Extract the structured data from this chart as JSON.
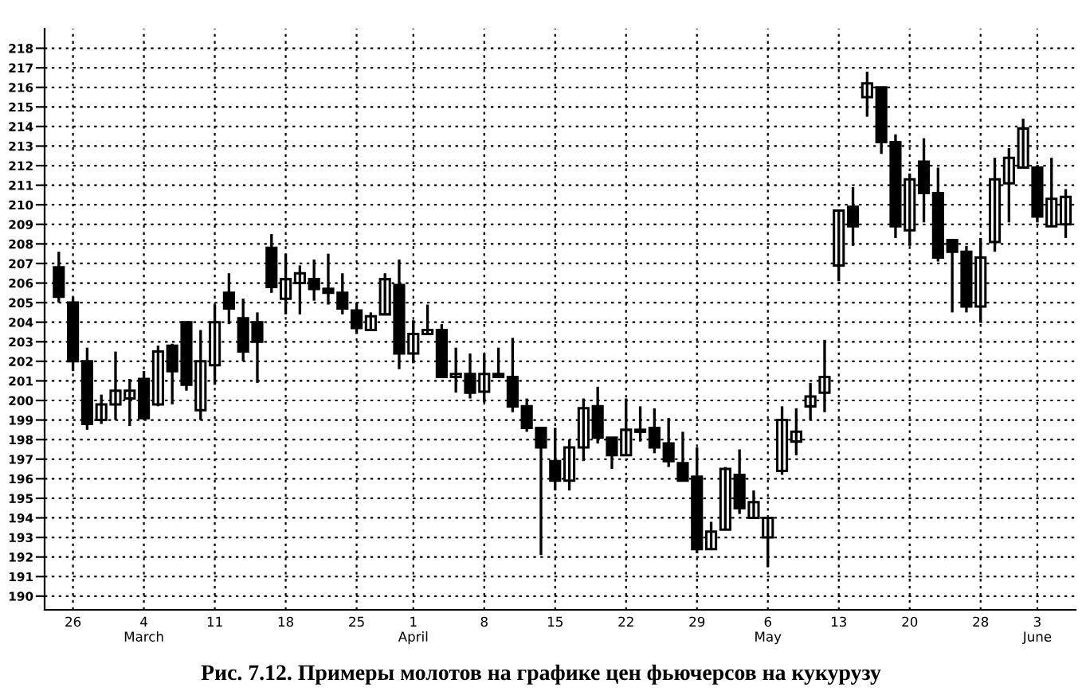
{
  "chart_data": {
    "type": "candlestick",
    "title": "Рис. 7.12. Примеры молотов на графике цен фьючерсов на кукурузу",
    "categories": [
      null,
      "26",
      null,
      null,
      null,
      null,
      "4\nMarch",
      null,
      null,
      null,
      null,
      "11",
      null,
      null,
      null,
      null,
      "18",
      null,
      null,
      null,
      null,
      "25",
      null,
      null,
      null,
      "1\nApril",
      null,
      null,
      null,
      null,
      "8",
      null,
      null,
      null,
      null,
      "15",
      null,
      null,
      null,
      null,
      "22",
      null,
      null,
      null,
      null,
      "29",
      null,
      null,
      null,
      null,
      "6\nMay",
      null,
      null,
      null,
      null,
      "13",
      null,
      null,
      null,
      null,
      "20",
      null,
      null,
      null,
      null,
      "28",
      null,
      null,
      null,
      "3\nJune",
      null,
      null
    ],
    "ohlc": [
      [
        206.8,
        207.6,
        205.0,
        205.3
      ],
      [
        205.0,
        205.3,
        201.5,
        202.0
      ],
      [
        202.0,
        202.7,
        198.5,
        198.8
      ],
      [
        199.0,
        200.3,
        198.8,
        199.8
      ],
      [
        199.8,
        202.5,
        199.0,
        200.5
      ],
      [
        200.1,
        201.1,
        198.7,
        200.5
      ],
      [
        201.1,
        201.5,
        199.0,
        199.1
      ],
      [
        199.8,
        202.8,
        199.7,
        202.5
      ],
      [
        202.8,
        202.9,
        199.8,
        201.5
      ],
      [
        204.0,
        204.0,
        200.5,
        200.8
      ],
      [
        199.5,
        203.6,
        199.0,
        202.0
      ],
      [
        201.8,
        204.9,
        200.8,
        204.0
      ],
      [
        205.5,
        206.5,
        203.9,
        204.7
      ],
      [
        204.2,
        205.2,
        202.0,
        202.5
      ],
      [
        204.0,
        204.5,
        200.9,
        203.0
      ],
      [
        207.8,
        208.5,
        205.5,
        205.8
      ],
      [
        205.2,
        207.5,
        204.4,
        206.2
      ],
      [
        206.0,
        206.9,
        204.4,
        206.5
      ],
      [
        206.2,
        207.2,
        205.1,
        205.7
      ],
      [
        205.7,
        207.5,
        204.9,
        205.5
      ],
      [
        205.5,
        206.5,
        204.4,
        204.7
      ],
      [
        204.6,
        205.0,
        203.4,
        203.7
      ],
      [
        203.6,
        204.5,
        203.6,
        204.3
      ],
      [
        204.4,
        206.5,
        204.4,
        206.2
      ],
      [
        205.9,
        207.2,
        201.6,
        202.4
      ],
      [
        202.4,
        204.1,
        201.9,
        203.4
      ],
      [
        203.4,
        204.9,
        203.4,
        203.6
      ],
      [
        203.6,
        203.9,
        201.2,
        201.2
      ],
      [
        201.2,
        202.7,
        200.4,
        201.35
      ],
      [
        201.35,
        202.4,
        200.1,
        200.4
      ],
      [
        200.45,
        202.4,
        199.9,
        201.35
      ],
      [
        201.35,
        202.7,
        201.2,
        201.2
      ],
      [
        201.2,
        203.2,
        199.4,
        199.7
      ],
      [
        199.7,
        200.1,
        198.4,
        198.6
      ],
      [
        198.6,
        198.6,
        192.1,
        197.6
      ],
      [
        196.9,
        198.6,
        195.4,
        195.9
      ],
      [
        195.9,
        198.0,
        195.4,
        197.6
      ],
      [
        197.6,
        200.1,
        196.9,
        199.6
      ],
      [
        199.7,
        200.7,
        197.8,
        198.1
      ],
      [
        198.1,
        198.1,
        196.5,
        197.2
      ],
      [
        197.2,
        200.1,
        197.2,
        198.5
      ],
      [
        198.4,
        199.7,
        197.9,
        198.5
      ],
      [
        198.6,
        199.6,
        197.3,
        197.6
      ],
      [
        197.8,
        199.1,
        196.6,
        196.9
      ],
      [
        196.8,
        198.4,
        195.9,
        195.9
      ],
      [
        196.1,
        197.6,
        192.2,
        192.4
      ],
      [
        192.4,
        193.8,
        192.4,
        193.3
      ],
      [
        193.4,
        196.6,
        193.4,
        196.5
      ],
      [
        196.2,
        197.5,
        194.2,
        194.5
      ],
      [
        194.0,
        195.4,
        194.0,
        194.8
      ],
      [
        193.0,
        194.0,
        191.5,
        194.0
      ],
      [
        196.4,
        199.7,
        196.2,
        199.0
      ],
      [
        197.9,
        199.6,
        197.2,
        198.4
      ],
      [
        199.7,
        200.9,
        199.0,
        200.2
      ],
      [
        200.4,
        203.1,
        199.4,
        201.2
      ],
      [
        206.9,
        209.7,
        206.1,
        209.7
      ],
      [
        209.9,
        210.9,
        207.9,
        208.9
      ],
      [
        215.5,
        216.8,
        214.5,
        216.2
      ],
      [
        216.0,
        216.0,
        212.6,
        213.2
      ],
      [
        213.2,
        213.6,
        208.3,
        208.9
      ],
      [
        208.7,
        211.6,
        207.9,
        211.3
      ],
      [
        212.2,
        213.4,
        209.1,
        210.6
      ],
      [
        210.6,
        211.9,
        207.1,
        207.3
      ],
      [
        208.2,
        208.2,
        204.5,
        207.6
      ],
      [
        207.6,
        207.9,
        204.5,
        204.8
      ],
      [
        204.8,
        208.3,
        204.0,
        207.3
      ],
      [
        208.1,
        212.4,
        207.6,
        211.3
      ],
      [
        211.1,
        212.9,
        209.1,
        212.4
      ],
      [
        211.9,
        214.4,
        211.9,
        213.9
      ],
      [
        211.9,
        211.9,
        209.1,
        209.4
      ],
      [
        208.9,
        212.4,
        208.9,
        210.3
      ],
      [
        209.0,
        210.8,
        208.3,
        210.4
      ]
    ],
    "ylim": [
      189.3,
      219
    ],
    "yticks": [
      190,
      191,
      192,
      193,
      194,
      195,
      196,
      197,
      198,
      199,
      200,
      201,
      202,
      203,
      204,
      205,
      206,
      207,
      208,
      209,
      210,
      211,
      212,
      213,
      214,
      215,
      216,
      217,
      218
    ],
    "grid": true
  }
}
